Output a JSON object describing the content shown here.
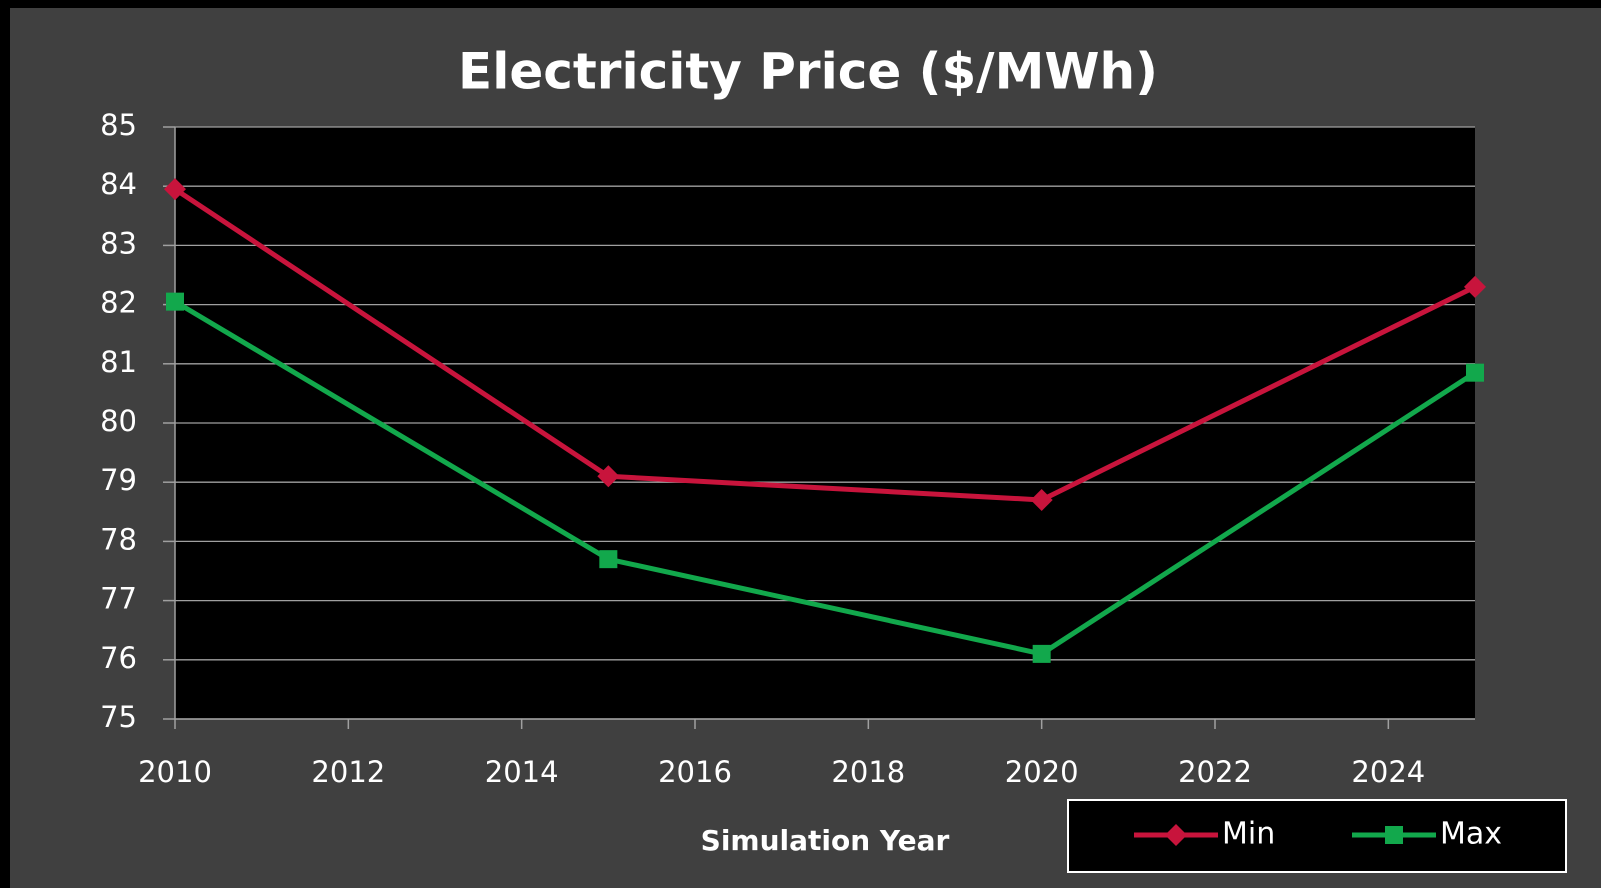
{
  "chart_data": {
    "type": "line",
    "title": "Electricity Price ($/MWh)",
    "x_label": "Simulation Year",
    "x": [
      2010,
      2015,
      2020,
      2025
    ],
    "series": [
      {
        "name": "Min",
        "color": "#c8143c",
        "marker": "diamond",
        "values": [
          83.95,
          79.1,
          78.7,
          82.3
        ]
      },
      {
        "name": "Max",
        "color": "#12a84c",
        "marker": "square",
        "values": [
          82.05,
          77.7,
          76.1,
          80.85
        ]
      }
    ],
    "xlim": [
      2010,
      2025
    ],
    "xticks": [
      2010,
      2012,
      2014,
      2016,
      2018,
      2020,
      2022,
      2024
    ],
    "ylim": [
      75,
      85
    ],
    "yticks": [
      75,
      76,
      77,
      78,
      79,
      80,
      81,
      82,
      83,
      84,
      85
    ],
    "grid": true,
    "legend": "bottom-right"
  }
}
